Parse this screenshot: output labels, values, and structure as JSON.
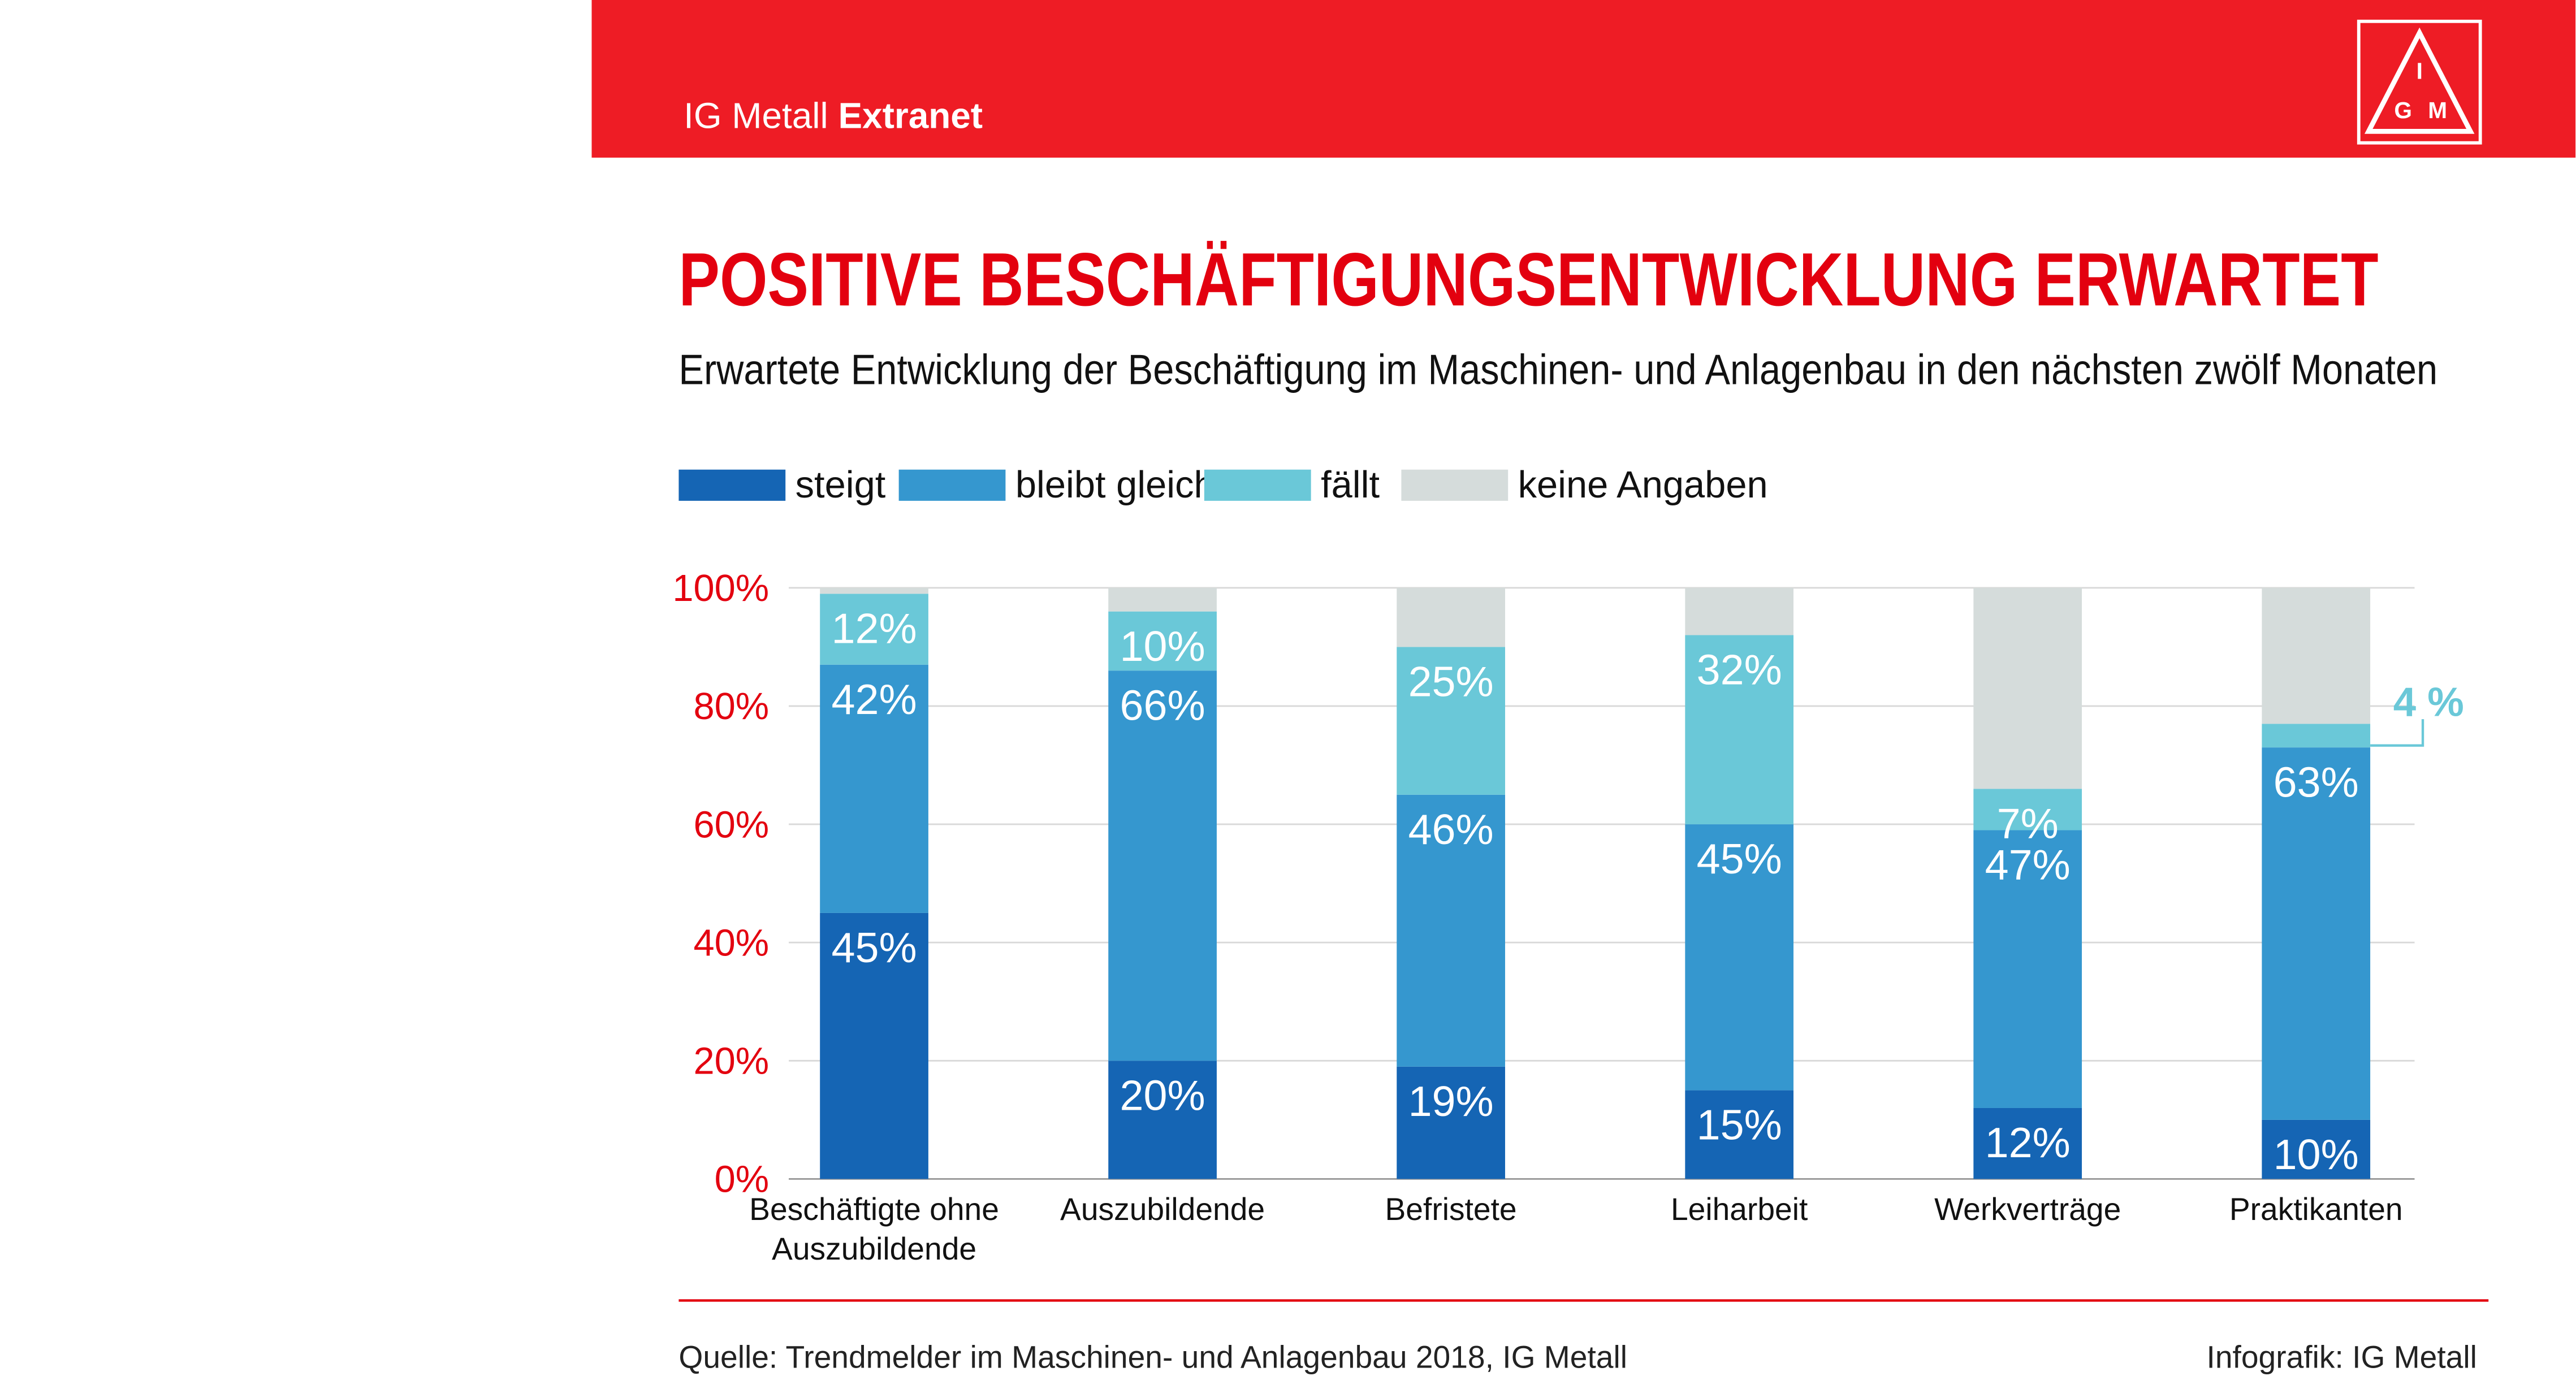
{
  "header": {
    "brand": "IG Metall",
    "section": "Extranet",
    "logo_letters": [
      "I",
      "G",
      "M"
    ]
  },
  "chart_data": {
    "type": "stacked_bar",
    "title": "POSITIVE BESCHÄFTIGUNGSENTWICKLUNG ERWARTET",
    "subtitle": "Erwartete Entwicklung der Beschäftigung im Maschinen- und Anlagenbau in den nächsten zwölf Monaten",
    "categories": [
      "Beschäftigte ohne Auszubildende",
      "Auszubildende",
      "Befristete",
      "Leiharbeit",
      "Werkverträge",
      "Praktikanten"
    ],
    "series": [
      {
        "name": "steigt",
        "color": "#1565b4",
        "values": [
          45,
          20,
          19,
          15,
          12,
          10
        ],
        "value_labels": [
          "45%",
          "20%",
          "19%",
          "15%",
          "12%",
          "10%"
        ]
      },
      {
        "name": "bleibt gleich",
        "color": "#3597cf",
        "values": [
          42,
          66,
          46,
          45,
          47,
          63
        ],
        "value_labels": [
          "42%",
          "66%",
          "46%",
          "45%",
          "47%",
          "63%"
        ]
      },
      {
        "name": "fällt",
        "color": "#6ac8d8",
        "values": [
          12,
          10,
          25,
          32,
          7,
          4
        ],
        "value_labels": [
          "12%",
          "10%",
          "25%",
          "32%",
          "7%",
          "4 %"
        ]
      },
      {
        "name": "keine Angaben",
        "color": "#d5dcdb",
        "values": [
          1,
          4,
          10,
          8,
          34,
          23
        ]
      }
    ],
    "ylim": [
      0,
      100
    ],
    "yticks": [
      {
        "value": 0,
        "label": "0%"
      },
      {
        "value": 20,
        "label": "20%"
      },
      {
        "value": 40,
        "label": "40%"
      },
      {
        "value": 60,
        "label": "60%"
      },
      {
        "value": 80,
        "label": "80%"
      },
      {
        "value": 100,
        "label": "100%"
      }
    ],
    "grid": true,
    "legend": "top-left"
  },
  "footer": {
    "source": "Quelle: Trendmelder im Maschinen- und Anlagenbau 2018, IG Metall",
    "credit": "Infografik: IG Metall"
  }
}
